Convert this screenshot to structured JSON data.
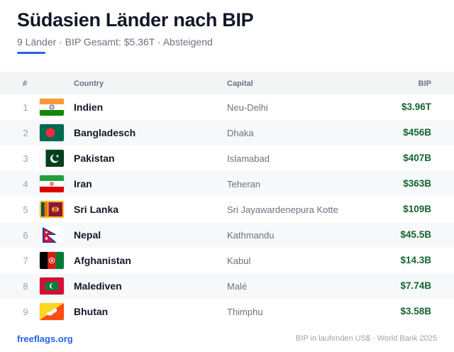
{
  "header": {
    "title": "Südasien Länder nach BIP",
    "subtitle": "9 Länder · BIP Gesamt: $5.36T · Absteigend",
    "accent_color": "#2563eb"
  },
  "table": {
    "columns": {
      "rank": "#",
      "country": "Country",
      "capital": "Capital",
      "gdp": "BIP"
    },
    "rows": [
      {
        "rank": "1",
        "flag": "india-flag",
        "country": "Indien",
        "capital": "Neu-Delhi",
        "gdp": "$3.96T"
      },
      {
        "rank": "2",
        "flag": "bangladesh-flag",
        "country": "Bangladesch",
        "capital": "Dhaka",
        "gdp": "$456B"
      },
      {
        "rank": "3",
        "flag": "pakistan-flag",
        "country": "Pakistan",
        "capital": "Islamabad",
        "gdp": "$407B"
      },
      {
        "rank": "4",
        "flag": "iran-flag",
        "country": "Iran",
        "capital": "Teheran",
        "gdp": "$363B"
      },
      {
        "rank": "5",
        "flag": "sri-lanka-flag",
        "country": "Sri Lanka",
        "capital": "Sri Jayawardenepura Kotte",
        "gdp": "$109B"
      },
      {
        "rank": "6",
        "flag": "nepal-flag",
        "country": "Nepal",
        "capital": "Kathmandu",
        "gdp": "$45.5B"
      },
      {
        "rank": "7",
        "flag": "afghanistan-flag",
        "country": "Afghanistan",
        "capital": "Kabul",
        "gdp": "$14.3B"
      },
      {
        "rank": "8",
        "flag": "maldives-flag",
        "country": "Malediven",
        "capital": "Malé",
        "gdp": "$7.74B"
      },
      {
        "rank": "9",
        "flag": "bhutan-flag",
        "country": "Bhutan",
        "capital": "Thimphu",
        "gdp": "$3.58B"
      }
    ]
  },
  "footer": {
    "brand": "freeflags.org",
    "source": "BIP in laufenden US$ · World Bank 2025"
  },
  "colors": {
    "gdp_value": "#166534",
    "brand": "#2563eb",
    "row_alt": "#f7f8fa"
  }
}
